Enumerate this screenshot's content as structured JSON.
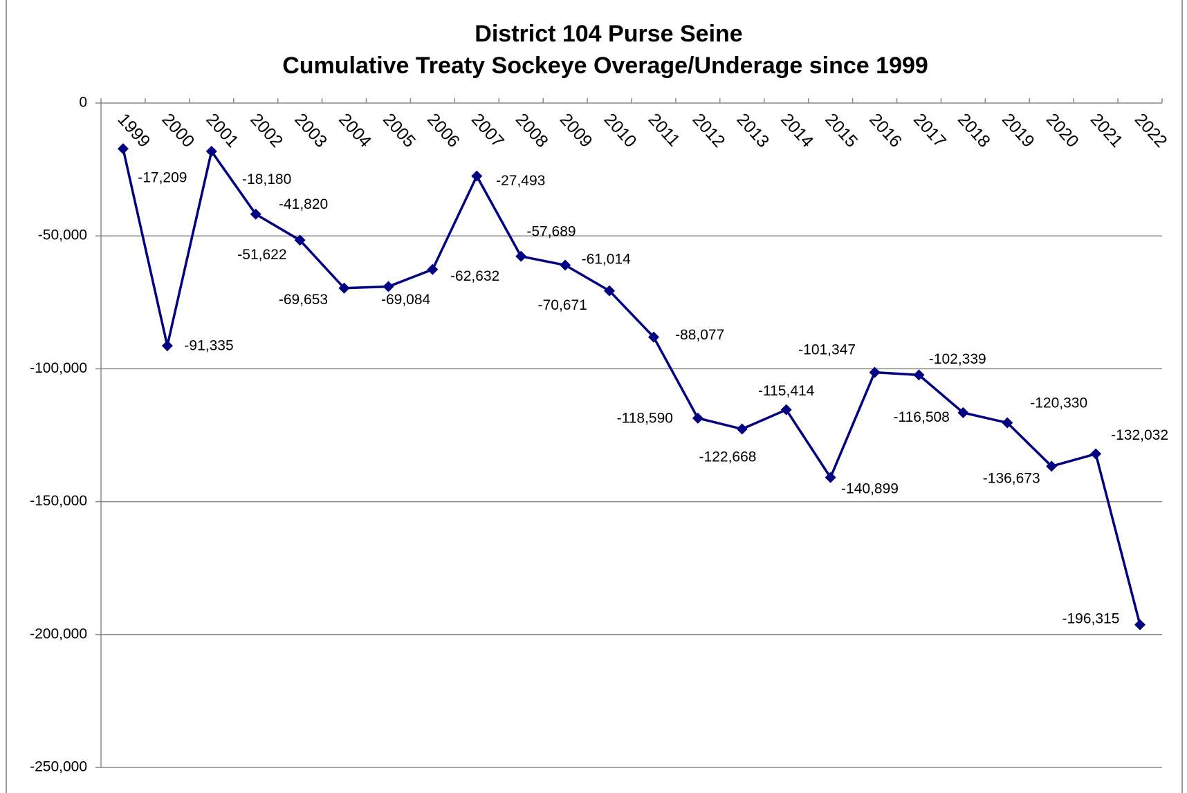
{
  "chart_data": {
    "type": "line",
    "title": [
      "District 104 Purse Seine",
      "Cumulative Treaty Sockeye Overage/Underage since 1999"
    ],
    "categories": [
      "1999",
      "2000",
      "2001",
      "2002",
      "2003",
      "2004",
      "2005",
      "2006",
      "2007",
      "2008",
      "2009",
      "2010",
      "2011",
      "2012",
      "2013",
      "2014",
      "2015",
      "2016",
      "2017",
      "2018",
      "2019",
      "2020",
      "2021",
      "2022"
    ],
    "series": [
      {
        "color": "#000080",
        "values": [
          -17209,
          -91335,
          -18180,
          -41820,
          -51622,
          -69653,
          -69084,
          -62632,
          -27493,
          -57689,
          -61014,
          -70671,
          -88077,
          -118590,
          -122668,
          -115414,
          -140899,
          -101347,
          -102339,
          -116508,
          -120330,
          -136673,
          -132032,
          -196315
        ],
        "value_labels": [
          "-17,209",
          "-91,335",
          "-18,180",
          "-41,820",
          "-51,622",
          "-69,653",
          "-69,084",
          "-62,632",
          "-27,493",
          "-57,689",
          "-61,014",
          "-70,671",
          "-88,077",
          "-118,590",
          "-122,668",
          "-115,414",
          "-140,899",
          "-101,347",
          "-102,339",
          "-116,508",
          "-120,330",
          "-136,673",
          "-132,032",
          "-196,315"
        ]
      }
    ],
    "ylim": [
      -250000,
      0
    ],
    "yticks": [
      0,
      {
        "value": -50000,
        "label": "-50,000"
      },
      {
        "value": -100000,
        "label": "-100,000"
      },
      {
        "value": -150000,
        "label": "-150,000"
      },
      {
        "value": -200000,
        "label": "-200,000"
      },
      {
        "value": -250000,
        "label": "-250,000"
      }
    ],
    "grid": true
  }
}
